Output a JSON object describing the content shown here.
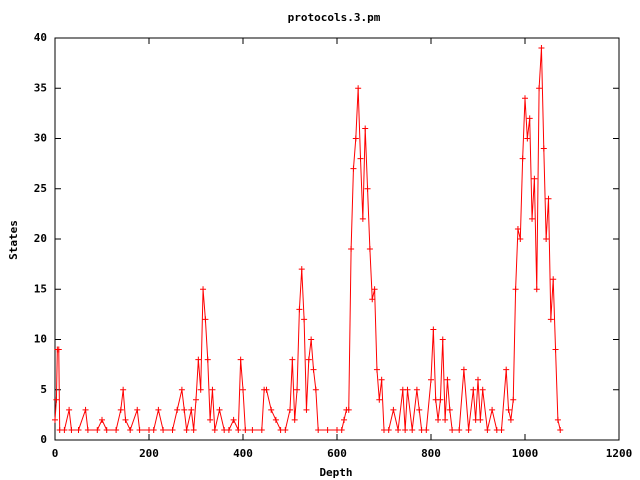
{
  "chart_data": {
    "type": "line",
    "title": "protocols.3.pm",
    "x_label": "Depth",
    "y_label": "States",
    "series": [
      {
        "name": "protocols.3.pm",
        "color": "#ff0000",
        "x": [
          0,
          3,
          5,
          8,
          10,
          20,
          30,
          35,
          50,
          65,
          70,
          90,
          100,
          110,
          130,
          140,
          145,
          150,
          160,
          175,
          180,
          200,
          210,
          220,
          230,
          250,
          260,
          270,
          275,
          280,
          290,
          295,
          300,
          305,
          310,
          315,
          320,
          325,
          330,
          335,
          340,
          350,
          360,
          370,
          380,
          390,
          395,
          400,
          405,
          420,
          440,
          445,
          450,
          460,
          470,
          480,
          490,
          500,
          505,
          510,
          515,
          520,
          525,
          530,
          535,
          540,
          545,
          550,
          555,
          560,
          580,
          600,
          610,
          615,
          620,
          625,
          630,
          635,
          640,
          645,
          650,
          655,
          660,
          665,
          670,
          675,
          680,
          685,
          690,
          695,
          700,
          710,
          720,
          730,
          740,
          745,
          750,
          760,
          770,
          775,
          780,
          790,
          800,
          805,
          810,
          815,
          820,
          825,
          830,
          835,
          840,
          845,
          860,
          870,
          880,
          890,
          895,
          900,
          905,
          910,
          920,
          930,
          940,
          950,
          960,
          965,
          970,
          975,
          980,
          985,
          990,
          995,
          1000,
          1005,
          1010,
          1015,
          1020,
          1025,
          1030,
          1035,
          1040,
          1045,
          1050,
          1055,
          1060,
          1065,
          1070,
          1075
        ],
        "values": [
          2,
          4,
          9,
          9,
          1,
          1,
          3,
          1,
          1,
          3,
          1,
          1,
          2,
          1,
          1,
          3,
          5,
          2,
          1,
          3,
          1,
          1,
          1,
          3,
          1,
          1,
          3,
          5,
          3,
          1,
          3,
          1,
          4,
          8,
          5,
          15,
          12,
          8,
          2,
          5,
          1,
          3,
          1,
          1,
          2,
          1,
          8,
          5,
          1,
          1,
          1,
          5,
          5,
          3,
          2,
          1,
          1,
          3,
          8,
          2,
          5,
          13,
          17,
          12,
          3,
          8,
          10,
          7,
          5,
          1,
          1,
          1,
          1,
          2,
          3,
          3,
          19,
          27,
          30,
          35,
          28,
          22,
          31,
          25,
          19,
          14,
          15,
          7,
          4,
          6,
          1,
          1,
          3,
          1,
          5,
          1,
          5,
          1,
          5,
          3,
          1,
          1,
          6,
          11,
          4,
          2,
          4,
          10,
          2,
          6,
          3,
          1,
          1,
          7,
          1,
          5,
          2,
          6,
          2,
          5,
          1,
          3,
          1,
          1,
          7,
          3,
          2,
          4,
          15,
          21,
          20,
          28,
          34,
          30,
          32,
          22,
          26,
          15,
          35,
          39,
          29,
          20,
          24,
          12,
          16,
          9,
          2,
          1
        ]
      }
    ],
    "xlim": [
      0,
      1200
    ],
    "xticks": [
      0,
      200,
      400,
      600,
      800,
      1000,
      1200
    ],
    "ylim": [
      0,
      40
    ],
    "yticks": [
      0,
      5,
      10,
      15,
      20,
      25,
      30,
      35,
      40
    ]
  }
}
